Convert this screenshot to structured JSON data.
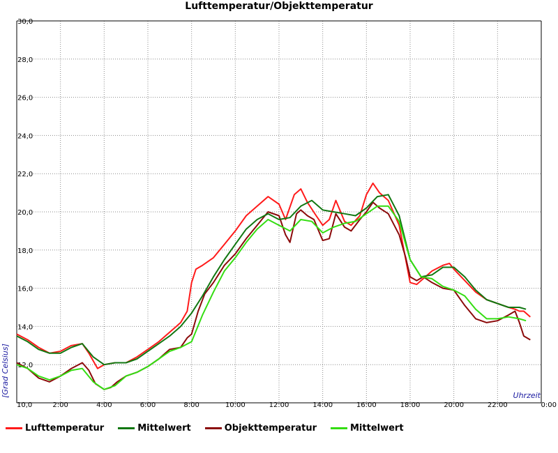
{
  "chart_data": {
    "type": "line",
    "title": "Lufttemperatur/Objekttemperatur",
    "xlabel": "Uhrzeit",
    "ylabel": "[Grad Celsius]",
    "xlim": [
      0,
      24
    ],
    "ylim": [
      10,
      30
    ],
    "x_tick_labels": [
      "10,0",
      "2:00",
      "4:00",
      "6:00",
      "8:00",
      "10:00",
      "12:00",
      "14:00",
      "16:00",
      "18:00",
      "20:00",
      "22:00",
      "0:00"
    ],
    "y_tick_labels": [
      "12,0",
      "14,0",
      "16,0",
      "18,0",
      "20,0",
      "22,0",
      "24,0",
      "26,0",
      "28,0",
      "30,0"
    ],
    "grid": true,
    "legend_position": "bottom",
    "series": [
      {
        "name": "Lufttemperatur",
        "color": "#ff1a1a",
        "points": [
          [
            0,
            13.6
          ],
          [
            0.5,
            13.3
          ],
          [
            1,
            12.9
          ],
          [
            1.5,
            12.6
          ],
          [
            2,
            12.7
          ],
          [
            2.5,
            13.0
          ],
          [
            3,
            13.1
          ],
          [
            3.3,
            12.6
          ],
          [
            3.7,
            11.8
          ],
          [
            4,
            12.0
          ],
          [
            4.5,
            12.1
          ],
          [
            5,
            12.1
          ],
          [
            5.5,
            12.4
          ],
          [
            6,
            12.8
          ],
          [
            6.5,
            13.2
          ],
          [
            7,
            13.7
          ],
          [
            7.5,
            14.2
          ],
          [
            7.8,
            14.8
          ],
          [
            8,
            16.3
          ],
          [
            8.2,
            17.0
          ],
          [
            8.5,
            17.2
          ],
          [
            9,
            17.6
          ],
          [
            9.5,
            18.3
          ],
          [
            10,
            19.0
          ],
          [
            10.5,
            19.8
          ],
          [
            11,
            20.3
          ],
          [
            11.5,
            20.8
          ],
          [
            12,
            20.4
          ],
          [
            12.3,
            19.6
          ],
          [
            12.7,
            20.9
          ],
          [
            13,
            21.2
          ],
          [
            13.3,
            20.5
          ],
          [
            13.7,
            19.8
          ],
          [
            14,
            19.3
          ],
          [
            14.3,
            19.6
          ],
          [
            14.6,
            20.6
          ],
          [
            15,
            19.5
          ],
          [
            15.3,
            19.3
          ],
          [
            15.7,
            19.8
          ],
          [
            16,
            20.9
          ],
          [
            16.3,
            21.5
          ],
          [
            16.6,
            21.0
          ],
          [
            17,
            20.6
          ],
          [
            17.5,
            19.3
          ],
          [
            17.8,
            17.5
          ],
          [
            18,
            16.3
          ],
          [
            18.3,
            16.2
          ],
          [
            18.6,
            16.5
          ],
          [
            19,
            16.9
          ],
          [
            19.5,
            17.2
          ],
          [
            19.8,
            17.3
          ],
          [
            20,
            17.0
          ],
          [
            20.5,
            16.4
          ],
          [
            21,
            15.8
          ],
          [
            21.5,
            15.4
          ],
          [
            22,
            15.2
          ],
          [
            22.5,
            15.0
          ],
          [
            22.8,
            14.9
          ],
          [
            23,
            14.8
          ],
          [
            23.2,
            14.8
          ],
          [
            23.5,
            14.5
          ]
        ]
      },
      {
        "name": "Mittelwert",
        "color": "#117711",
        "points": [
          [
            0,
            13.5
          ],
          [
            0.5,
            13.2
          ],
          [
            1,
            12.8
          ],
          [
            1.5,
            12.6
          ],
          [
            2,
            12.6
          ],
          [
            2.5,
            12.9
          ],
          [
            3,
            13.1
          ],
          [
            3.5,
            12.4
          ],
          [
            4,
            12.0
          ],
          [
            4.5,
            12.1
          ],
          [
            5,
            12.1
          ],
          [
            5.5,
            12.3
          ],
          [
            6,
            12.7
          ],
          [
            6.5,
            13.1
          ],
          [
            7,
            13.5
          ],
          [
            7.5,
            14.0
          ],
          [
            8,
            14.7
          ],
          [
            8.5,
            15.6
          ],
          [
            9,
            16.6
          ],
          [
            9.5,
            17.5
          ],
          [
            10,
            18.3
          ],
          [
            10.5,
            19.1
          ],
          [
            11,
            19.6
          ],
          [
            11.5,
            19.9
          ],
          [
            12,
            19.6
          ],
          [
            12.5,
            19.7
          ],
          [
            13,
            20.3
          ],
          [
            13.5,
            20.6
          ],
          [
            14,
            20.1
          ],
          [
            14.5,
            20.0
          ],
          [
            15,
            19.9
          ],
          [
            15.5,
            19.8
          ],
          [
            16,
            20.2
          ],
          [
            16.5,
            20.8
          ],
          [
            17,
            20.9
          ],
          [
            17.5,
            19.8
          ],
          [
            18,
            17.5
          ],
          [
            18.5,
            16.6
          ],
          [
            19,
            16.7
          ],
          [
            19.5,
            17.1
          ],
          [
            20,
            17.1
          ],
          [
            20.5,
            16.6
          ],
          [
            21,
            15.9
          ],
          [
            21.5,
            15.4
          ],
          [
            22,
            15.2
          ],
          [
            22.5,
            15.0
          ],
          [
            23,
            15.0
          ],
          [
            23.3,
            14.9
          ]
        ]
      },
      {
        "name": "Objekttemperatur",
        "color": "#8b0a0a",
        "points": [
          [
            0,
            12.1
          ],
          [
            0.5,
            11.8
          ],
          [
            1,
            11.3
          ],
          [
            1.5,
            11.1
          ],
          [
            2,
            11.4
          ],
          [
            2.5,
            11.8
          ],
          [
            3,
            12.1
          ],
          [
            3.3,
            11.7
          ],
          [
            3.6,
            11.0
          ],
          [
            4,
            10.7
          ],
          [
            4.3,
            10.8
          ],
          [
            4.6,
            11.1
          ],
          [
            5,
            11.4
          ],
          [
            5.5,
            11.6
          ],
          [
            6,
            11.9
          ],
          [
            6.5,
            12.3
          ],
          [
            7,
            12.8
          ],
          [
            7.5,
            12.9
          ],
          [
            7.8,
            13.4
          ],
          [
            8,
            13.6
          ],
          [
            8.3,
            14.8
          ],
          [
            8.6,
            15.7
          ],
          [
            9,
            16.3
          ],
          [
            9.5,
            17.2
          ],
          [
            10,
            17.8
          ],
          [
            10.5,
            18.6
          ],
          [
            11,
            19.3
          ],
          [
            11.5,
            20.0
          ],
          [
            12,
            19.8
          ],
          [
            12.3,
            18.8
          ],
          [
            12.5,
            18.4
          ],
          [
            12.8,
            19.9
          ],
          [
            13,
            20.1
          ],
          [
            13.3,
            19.8
          ],
          [
            13.6,
            19.6
          ],
          [
            14,
            18.5
          ],
          [
            14.3,
            18.6
          ],
          [
            14.6,
            19.9
          ],
          [
            15,
            19.2
          ],
          [
            15.3,
            19.0
          ],
          [
            15.7,
            19.6
          ],
          [
            16,
            20.0
          ],
          [
            16.3,
            20.5
          ],
          [
            16.6,
            20.2
          ],
          [
            17,
            19.9
          ],
          [
            17.5,
            18.8
          ],
          [
            17.8,
            17.6
          ],
          [
            18,
            16.6
          ],
          [
            18.3,
            16.4
          ],
          [
            18.6,
            16.6
          ],
          [
            19,
            16.3
          ],
          [
            19.5,
            16.0
          ],
          [
            20,
            15.9
          ],
          [
            20.5,
            15.1
          ],
          [
            21,
            14.4
          ],
          [
            21.5,
            14.2
          ],
          [
            22,
            14.3
          ],
          [
            22.5,
            14.6
          ],
          [
            22.8,
            14.8
          ],
          [
            23,
            14.2
          ],
          [
            23.2,
            13.5
          ],
          [
            23.5,
            13.3
          ]
        ]
      },
      {
        "name": "Mittelwert",
        "color": "#33dd11",
        "points": [
          [
            0,
            12.0
          ],
          [
            0.5,
            11.8
          ],
          [
            1,
            11.4
          ],
          [
            1.5,
            11.2
          ],
          [
            2,
            11.4
          ],
          [
            2.5,
            11.7
          ],
          [
            3,
            11.8
          ],
          [
            3.5,
            11.1
          ],
          [
            4,
            10.7
          ],
          [
            4.5,
            10.9
          ],
          [
            5,
            11.4
          ],
          [
            5.5,
            11.6
          ],
          [
            6,
            11.9
          ],
          [
            6.5,
            12.3
          ],
          [
            7,
            12.7
          ],
          [
            7.5,
            12.9
          ],
          [
            8,
            13.2
          ],
          [
            8.5,
            14.6
          ],
          [
            9,
            15.8
          ],
          [
            9.5,
            16.9
          ],
          [
            10,
            17.6
          ],
          [
            10.5,
            18.4
          ],
          [
            11,
            19.1
          ],
          [
            11.5,
            19.6
          ],
          [
            12,
            19.3
          ],
          [
            12.5,
            19.0
          ],
          [
            13,
            19.6
          ],
          [
            13.5,
            19.5
          ],
          [
            14,
            18.9
          ],
          [
            14.5,
            19.2
          ],
          [
            15,
            19.4
          ],
          [
            15.5,
            19.5
          ],
          [
            16,
            19.9
          ],
          [
            16.5,
            20.3
          ],
          [
            17,
            20.3
          ],
          [
            17.5,
            19.5
          ],
          [
            18,
            17.5
          ],
          [
            18.5,
            16.6
          ],
          [
            19,
            16.5
          ],
          [
            19.5,
            16.1
          ],
          [
            20,
            15.9
          ],
          [
            20.5,
            15.6
          ],
          [
            21,
            14.9
          ],
          [
            21.5,
            14.4
          ],
          [
            22,
            14.4
          ],
          [
            22.5,
            14.5
          ],
          [
            23,
            14.4
          ],
          [
            23.3,
            14.3
          ]
        ]
      }
    ]
  }
}
